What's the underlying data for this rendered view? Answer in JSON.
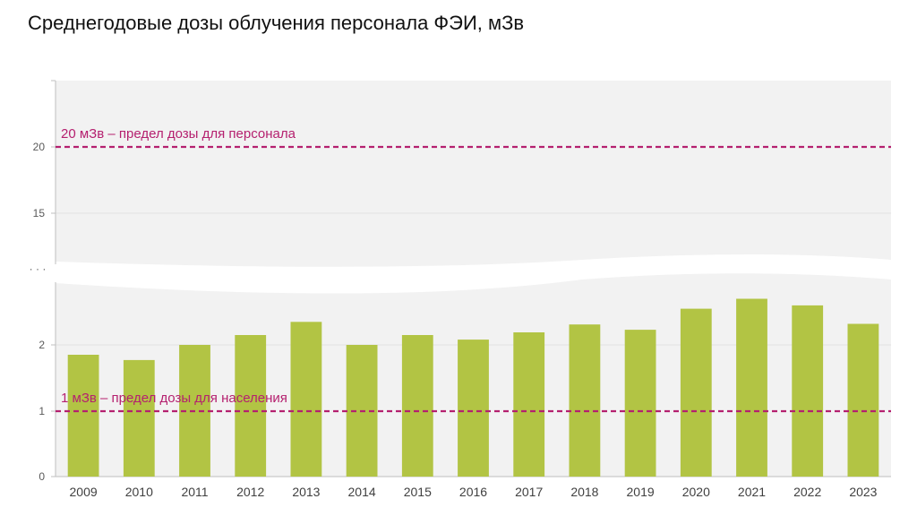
{
  "title": "Среднегодовые дозы облучения персонала ФЭИ, мЗв",
  "colors": {
    "bar": "#b2c444",
    "reference": "#b5206f",
    "plot_background": "#f2f2f2"
  },
  "chart_data": {
    "type": "bar",
    "categories": [
      "2009",
      "2010",
      "2011",
      "2012",
      "2013",
      "2014",
      "2015",
      "2016",
      "2017",
      "2018",
      "2019",
      "2020",
      "2021",
      "2022",
      "2023"
    ],
    "values": [
      1.85,
      1.77,
      2.0,
      2.15,
      2.35,
      2.0,
      2.15,
      2.08,
      2.19,
      2.31,
      2.23,
      2.55,
      2.7,
      2.6,
      2.32
    ],
    "axis_break": true,
    "break_marker": "· · ·",
    "yticks_lower": [
      "0",
      "1",
      "2"
    ],
    "yticks_upper": [
      "15",
      "20"
    ],
    "reference_lines": [
      {
        "value": 20,
        "label": "20 мЗв – предел дозы для персонала"
      },
      {
        "value": 1,
        "label": "1 мЗв – предел дозы для населения"
      }
    ],
    "grid": true
  }
}
